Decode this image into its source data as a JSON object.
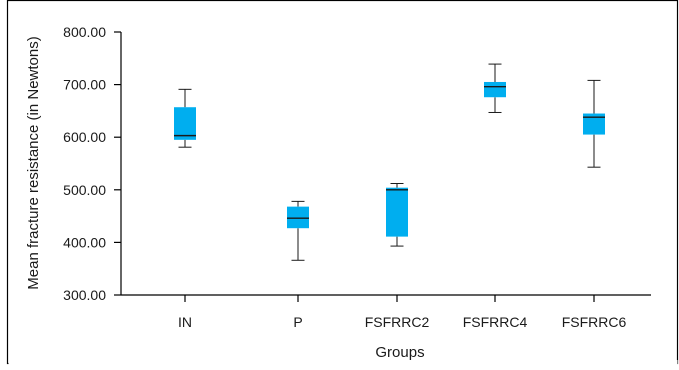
{
  "chart_data": {
    "type": "boxplot",
    "title": "",
    "xlabel": "Groups",
    "ylabel": "Mean fracture resistance (in Newtons)",
    "ylim": [
      300,
      800
    ],
    "yticks": [
      "300.00",
      "400.00",
      "500.00",
      "600.00",
      "700.00",
      "800.00"
    ],
    "grid": false,
    "box_color": "#00aeef",
    "categories": [
      "IN",
      "P",
      "FSFRRC2",
      "FSFRRC4",
      "FSFRRC6"
    ],
    "boxes": [
      {
        "name": "IN",
        "min": 581,
        "q1": 595,
        "median": 603,
        "q3": 657,
        "max": 691
      },
      {
        "name": "P",
        "min": 366,
        "q1": 427,
        "median": 446,
        "q3": 468,
        "max": 478
      },
      {
        "name": "FSFRRC2",
        "min": 393,
        "q1": 411,
        "median": 500,
        "q3": 504,
        "max": 512
      },
      {
        "name": "FSFRRC4",
        "min": 647,
        "q1": 676,
        "median": 696,
        "q3": 705,
        "max": 739
      },
      {
        "name": "FSFRRC6",
        "min": 543,
        "q1": 605,
        "median": 638,
        "q3": 645,
        "max": 708
      }
    ]
  }
}
